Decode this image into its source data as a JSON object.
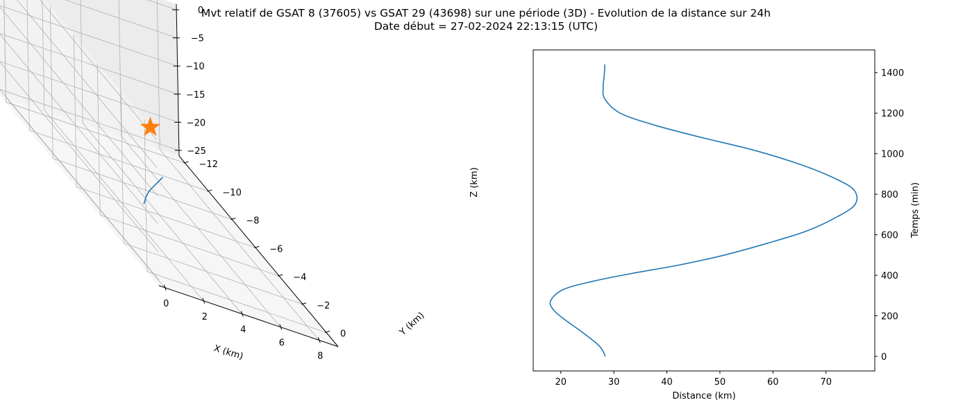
{
  "figure": {
    "title_line1": "Mvt relatif de GSAT 8 (37605) vs GSAT 29 (43698) sur une période (3D) - Evolution de la distance sur 24h",
    "title_line2": "Date début = 27-02-2024 22:13:15 (UTC)"
  },
  "colors": {
    "series": "#1f77b4",
    "marker": "#ff7f0e",
    "grid": "#b0b0b0",
    "axis": "#000000"
  },
  "chart_data": [
    {
      "type": "line3d",
      "xlabel": "X (km)",
      "ylabel": "Y (km)",
      "zlabel": "Z (km)",
      "xlim": [
        -0.3,
        9
      ],
      "ylim": [
        -12.5,
        1
      ],
      "zlim": [
        -26,
        1
      ],
      "xticks": [
        0,
        2,
        4,
        6,
        8
      ],
      "yticks": [
        0,
        -2,
        -4,
        -6,
        -8,
        -10,
        -12
      ],
      "zticks": [
        0,
        -5,
        -10,
        -15,
        -20,
        -25
      ],
      "grid": true,
      "series": [
        {
          "x": [
            3.2,
            3.8,
            4.4,
            5.0,
            5.5,
            5.9,
            6.2
          ],
          "y": [
            -6.0,
            -6.8,
            -7.5,
            -8.1,
            -8.6,
            -9.0,
            -9.3
          ],
          "z": [
            -25.0,
            -25.0,
            -25.0,
            -25.0,
            -25.0,
            -25.0,
            -25.0
          ]
        }
      ],
      "marker": {
        "symbol": "star",
        "x": 0,
        "y": 0,
        "z": 0
      }
    },
    {
      "type": "line",
      "xlabel": "Distance (km)",
      "ylabel": "Temps (min)",
      "xlim": [
        14.8,
        79.2
      ],
      "ylim": [
        -72,
        1512
      ],
      "xticks": [
        20,
        30,
        40,
        50,
        60,
        70
      ],
      "yticks": [
        0,
        200,
        400,
        600,
        800,
        1000,
        1200,
        1400
      ],
      "y_axis_side": "right",
      "grid": false,
      "series": [
        {
          "x": [
            28.4,
            27.3,
            24.0,
            20.8,
            18.6,
            18.1,
            20.5,
            26.0,
            33.6,
            42.2,
            50.9,
            59.2,
            66.5,
            72.2,
            75.5,
            75.3,
            71.5,
            64.8,
            56.0,
            46.5,
            37.8,
            31.2,
            28.3,
            28.0,
            28.2,
            28.3
          ],
          "y": [
            0,
            50,
            120,
            180,
            230,
            275,
            330,
            370,
            410,
            450,
            500,
            560,
            620,
            690,
            750,
            820,
            880,
            950,
            1020,
            1080,
            1140,
            1200,
            1270,
            1330,
            1390,
            1440
          ]
        }
      ]
    }
  ]
}
